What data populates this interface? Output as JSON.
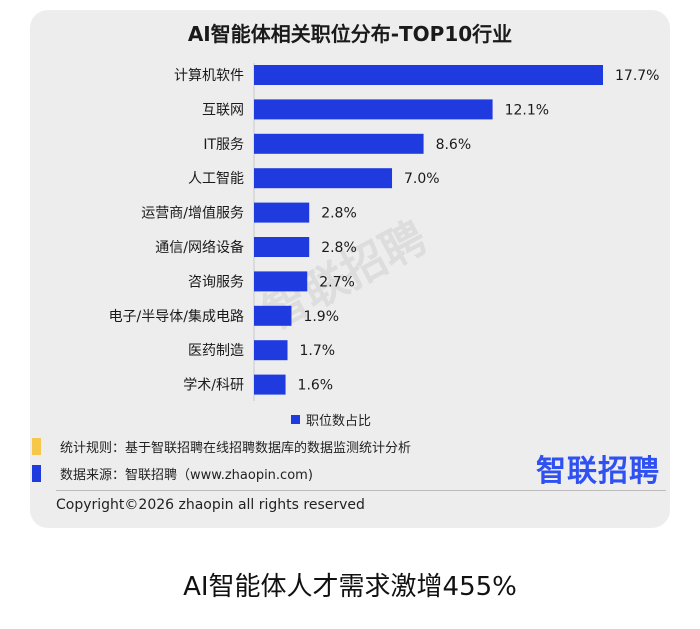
{
  "title": "AI智能体相关职位分布-TOP10行业",
  "caption": "AI智能体人才需求激增455%",
  "watermark": "智联招聘",
  "legend_label": "职位数占比",
  "notes": {
    "rule": "统计规则：基于智联招聘在线招聘数据库的数据监测统计分析",
    "source": "数据来源：智联招聘（www.zhaopin.com)"
  },
  "logo_text": "智联招聘",
  "copyright": "Copyright©2026 zhaopin all rights reserved",
  "colors": {
    "bar": "#1f3be0",
    "logo": "#2f51f1",
    "marker_rule": "#f5c84c",
    "marker_source": "#1f3be0"
  },
  "chart_data": {
    "type": "bar",
    "orientation": "horizontal",
    "title": "AI智能体相关职位分布-TOP10行业",
    "categories": [
      "计算机软件",
      "互联网",
      "IT服务",
      "人工智能",
      "运营商/增值服务",
      "通信/网络设备",
      "咨询服务",
      "电子/半导体/集成电路",
      "医药制造",
      "学术/科研"
    ],
    "series": [
      {
        "name": "职位数占比",
        "values": [
          17.7,
          12.1,
          8.6,
          7.0,
          2.8,
          2.8,
          2.7,
          1.9,
          1.7,
          1.6
        ]
      }
    ],
    "value_labels": [
      "17.7%",
      "12.1%",
      "8.6%",
      "7.0%",
      "2.8%",
      "2.8%",
      "2.7%",
      "1.9%",
      "1.7%",
      "1.6%"
    ],
    "xlim": [
      0,
      17.7
    ],
    "grid": false,
    "legend_position": "bottom"
  }
}
